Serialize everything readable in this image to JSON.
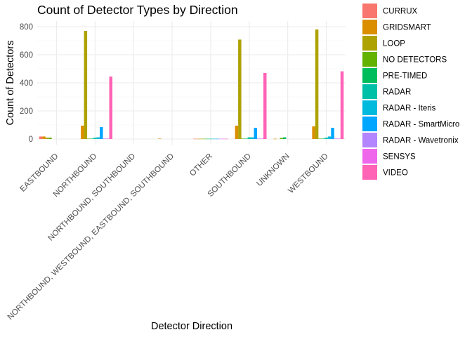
{
  "chart_data": {
    "type": "bar",
    "title": "Count of Detector Types by Direction",
    "xlabel": "Detector Direction",
    "ylabel": "Count of Detectors",
    "ylim": [
      -40,
      840
    ],
    "yticks": [
      0,
      200,
      400,
      600,
      800
    ],
    "grid": true,
    "legend_position": "right",
    "categories": [
      "EASTBOUND",
      "NORTHBOUND",
      "NORTHBOUND, SOUTHBOUND",
      "NORTHBOUND, WESTBOUND, EASTBOUND, SOUTHBOUND",
      "OTHER",
      "SOUTHBOUND",
      "UNKNOWN",
      "WESTBOUND"
    ],
    "series": [
      {
        "name": "CURRUX",
        "color": "#F8766D",
        "values": [
          18,
          0,
          0,
          0,
          2,
          0,
          0,
          0
        ]
      },
      {
        "name": "GRIDSMART",
        "color": "#DB8E00",
        "values": [
          18,
          95,
          0,
          3,
          2,
          95,
          2,
          90
        ]
      },
      {
        "name": "LOOP",
        "color": "#AEA200",
        "values": [
          10,
          770,
          0,
          0,
          2,
          708,
          0,
          780
        ]
      },
      {
        "name": "NO DETECTORS",
        "color": "#64B200",
        "values": [
          10,
          3,
          0,
          0,
          2,
          3,
          8,
          3
        ]
      },
      {
        "name": "PRE-TIMED",
        "color": "#00BD5C",
        "values": [
          0,
          3,
          0,
          0,
          2,
          3,
          12,
          3
        ]
      },
      {
        "name": "RADAR",
        "color": "#00C1A7",
        "values": [
          0,
          10,
          0,
          0,
          2,
          12,
          0,
          10
        ]
      },
      {
        "name": "RADAR - Iteris",
        "color": "#00BADE",
        "values": [
          0,
          12,
          0,
          0,
          2,
          12,
          0,
          18
        ]
      },
      {
        "name": "RADAR - SmartMicro",
        "color": "#00A6FF",
        "values": [
          0,
          85,
          0,
          0,
          2,
          80,
          0,
          80
        ]
      },
      {
        "name": "RADAR - Wavetronix",
        "color": "#B385FF",
        "values": [
          0,
          3,
          0,
          0,
          2,
          3,
          0,
          3
        ]
      },
      {
        "name": "SENSYS",
        "color": "#EF67EB",
        "values": [
          0,
          3,
          0,
          0,
          2,
          3,
          0,
          3
        ]
      },
      {
        "name": "VIDEO",
        "color": "#FF63B6",
        "values": [
          0,
          445,
          0,
          0,
          2,
          470,
          0,
          482
        ]
      }
    ]
  }
}
